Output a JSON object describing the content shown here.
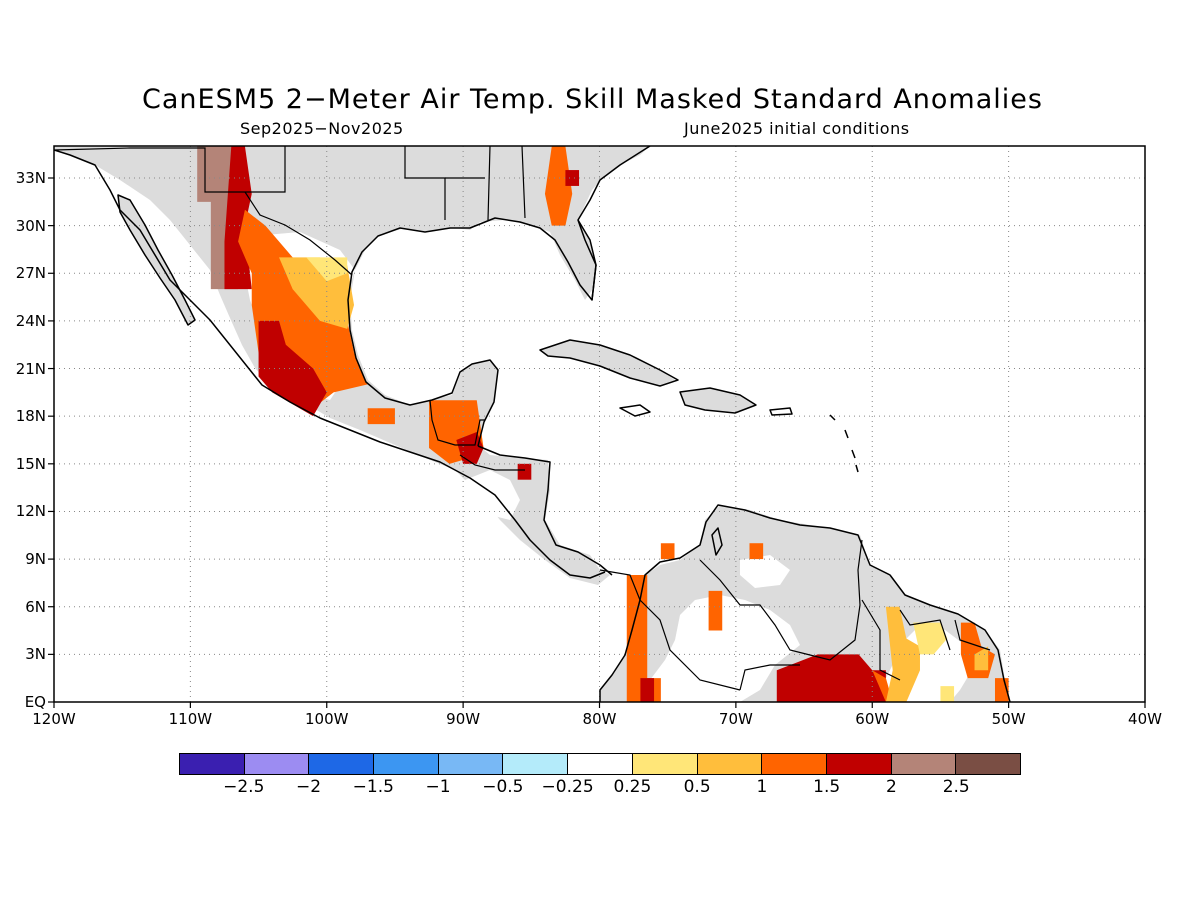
{
  "title": "CanESM5 2−Meter Air Temp. Skill Masked Standard Anomalies",
  "subtitle_left": "Sep2025−Nov2025",
  "subtitle_right": "June2025 initial conditions",
  "chart_data": {
    "type": "heatmap",
    "variable": "2-meter air temperature standard anomaly",
    "lon_range": [
      -120,
      -40
    ],
    "lat_range": [
      0,
      35
    ],
    "lat_ticks": [
      "33N",
      "30N",
      "27N",
      "24N",
      "21N",
      "18N",
      "15N",
      "12N",
      "9N",
      "6N",
      "3N",
      "EQ"
    ],
    "lon_ticks": [
      "120W",
      "110W",
      "100W",
      "90W",
      "80W",
      "70W",
      "60W",
      "50W",
      "40W"
    ],
    "grid": "dotted",
    "no_skill_color": "#dcdcdc",
    "colorbar": {
      "colors": [
        "#3a1fb0",
        "#9c8cf2",
        "#1e68e6",
        "#3c96f2",
        "#78b8f5",
        "#b4ebfa",
        "#ffffff",
        "#ffe678",
        "#ffbe3c",
        "#ff6400",
        "#c00000",
        "#b48478",
        "#7a4e44"
      ],
      "labels": [
        "−2.5",
        "−2",
        "−1.5",
        "−1",
        "−0.5",
        "−0.25",
        "0.25",
        "0.5",
        "1",
        "1.5",
        "2",
        "2.5"
      ]
    },
    "regions": [
      {
        "name": "N Mexico brown",
        "value": 2.5,
        "color": "#b48478",
        "poly": [
          [
            -109.5,
            35
          ],
          [
            -106.5,
            35
          ],
          [
            -106.5,
            26
          ],
          [
            -108.5,
            26
          ],
          [
            -108.5,
            31.5
          ],
          [
            -109.5,
            31.5
          ]
        ]
      },
      {
        "name": "N Mexico red",
        "value": 2,
        "color": "#c00000",
        "poly": [
          [
            -107,
            35
          ],
          [
            -106,
            35
          ],
          [
            -105.5,
            32
          ],
          [
            -106,
            30
          ],
          [
            -105.5,
            26
          ],
          [
            -107.5,
            26
          ],
          [
            -107.5,
            29
          ]
        ]
      },
      {
        "name": "Mexico orange",
        "value": 1.5,
        "color": "#ff6400",
        "poly": [
          [
            -106,
            31
          ],
          [
            -104.5,
            30
          ],
          [
            -102.5,
            28
          ],
          [
            -100.5,
            25
          ],
          [
            -98.5,
            24
          ],
          [
            -98,
            22
          ],
          [
            -97,
            20
          ],
          [
            -99.5,
            19.5
          ],
          [
            -101,
            18.5
          ],
          [
            -104,
            20
          ],
          [
            -105,
            22
          ],
          [
            -105.5,
            25
          ],
          [
            -105.5,
            27
          ],
          [
            -106.5,
            29
          ]
        ]
      },
      {
        "name": "Mexico orange light",
        "value": 1,
        "color": "#ffbe3c",
        "poly": [
          [
            -103.5,
            28
          ],
          [
            -100.5,
            28
          ],
          [
            -98.5,
            27.5
          ],
          [
            -98,
            25
          ],
          [
            -98.5,
            23.5
          ],
          [
            -100.5,
            24
          ],
          [
            -102.5,
            26
          ]
        ]
      },
      {
        "name": "Mexico yellow",
        "value": 0.5,
        "color": "#ffe678",
        "poly": [
          [
            -101.5,
            28
          ],
          [
            -98.5,
            28
          ],
          [
            -98.5,
            27
          ],
          [
            -100,
            26.5
          ]
        ]
      },
      {
        "name": "Mexico red",
        "value": 2,
        "color": "#c00000",
        "poly": [
          [
            -105,
            24
          ],
          [
            -103.5,
            24
          ],
          [
            -103,
            22.5
          ],
          [
            -101,
            21
          ],
          [
            -100,
            19.5
          ],
          [
            -101,
            18
          ],
          [
            -102,
            18.5
          ],
          [
            -104,
            19.5
          ],
          [
            -105,
            20.5
          ]
        ]
      },
      {
        "name": "Oaxaca orange",
        "value": 1.5,
        "color": "#ff6400",
        "poly": [
          [
            -97,
            18.5
          ],
          [
            -95,
            18.5
          ],
          [
            -95,
            17.5
          ],
          [
            -97,
            17.5
          ]
        ]
      },
      {
        "name": "Guatemala orange",
        "value": 1.5,
        "color": "#ff6400",
        "poly": [
          [
            -92.5,
            19
          ],
          [
            -89,
            19
          ],
          [
            -88.5,
            16
          ],
          [
            -89,
            15.5
          ],
          [
            -91,
            15
          ],
          [
            -92.5,
            16
          ]
        ]
      },
      {
        "name": "Guatemala red",
        "value": 2,
        "color": "#c00000",
        "poly": [
          [
            -90.5,
            16.5
          ],
          [
            -89,
            17
          ],
          [
            -88.5,
            16
          ],
          [
            -89,
            15
          ],
          [
            -90,
            15
          ]
        ]
      },
      {
        "name": "Honduras red",
        "value": 2,
        "color": "#c00000",
        "poly": [
          [
            -86,
            15
          ],
          [
            -85,
            15
          ],
          [
            -85,
            14
          ],
          [
            -86,
            14
          ]
        ]
      },
      {
        "name": "Georgia orange",
        "value": 1.5,
        "color": "#ff6400",
        "poly": [
          [
            -83.5,
            35
          ],
          [
            -82.5,
            35
          ],
          [
            -82,
            32
          ],
          [
            -82.5,
            30
          ],
          [
            -83.5,
            30
          ],
          [
            -84,
            32
          ]
        ]
      },
      {
        "name": "Georgia red",
        "value": 2,
        "color": "#c00000",
        "poly": [
          [
            -82.5,
            33.5
          ],
          [
            -81.5,
            33.5
          ],
          [
            -81.5,
            32.5
          ],
          [
            -82.5,
            32.5
          ]
        ]
      },
      {
        "name": "Colombia orange",
        "value": 1.5,
        "color": "#ff6400",
        "poly": [
          [
            -78,
            8
          ],
          [
            -76.5,
            8
          ],
          [
            -76.5,
            1.5
          ],
          [
            -75.5,
            1.5
          ],
          [
            -75.5,
            0
          ],
          [
            -78,
            0
          ]
        ]
      },
      {
        "name": "Colombia red",
        "value": 2,
        "color": "#c00000",
        "poly": [
          [
            -77,
            1.5
          ],
          [
            -76,
            1.5
          ],
          [
            -76,
            0
          ],
          [
            -77,
            0
          ]
        ]
      },
      {
        "name": "Venezuela orange",
        "value": 1.5,
        "color": "#ff6400",
        "poly": [
          [
            -75.5,
            10
          ],
          [
            -74.5,
            10
          ],
          [
            -74.5,
            9
          ],
          [
            -75.5,
            9
          ]
        ]
      },
      {
        "name": "Venezuela orange 2",
        "value": 1.5,
        "color": "#ff6400",
        "poly": [
          [
            -69,
            10
          ],
          [
            -68,
            10
          ],
          [
            -68,
            9
          ],
          [
            -69,
            9
          ]
        ]
      },
      {
        "name": "Colombia orange 2",
        "value": 1.5,
        "color": "#ff6400",
        "poly": [
          [
            -72,
            7
          ],
          [
            -71,
            7
          ],
          [
            -71,
            4.5
          ],
          [
            -72,
            4.5
          ]
        ]
      },
      {
        "name": "Amazon red",
        "value": 2,
        "color": "#c00000",
        "poly": [
          [
            -67,
            2
          ],
          [
            -64,
            3
          ],
          [
            -61,
            3
          ],
          [
            -60,
            2
          ],
          [
            -59,
            2
          ],
          [
            -59,
            0
          ],
          [
            -67,
            0
          ]
        ]
      },
      {
        "name": "Amazon orange",
        "value": 1.5,
        "color": "#ff6400",
        "poly": [
          [
            -60,
            2
          ],
          [
            -59,
            1.5
          ],
          [
            -58.5,
            0
          ],
          [
            -59,
            0
          ]
        ]
      },
      {
        "name": "Guiana light",
        "value": 1,
        "color": "#ffbe3c",
        "poly": [
          [
            -59,
            6
          ],
          [
            -58,
            6
          ],
          [
            -57.5,
            4
          ],
          [
            -56.5,
            3.5
          ],
          [
            -56.5,
            2
          ],
          [
            -57.5,
            0
          ],
          [
            -59,
            0
          ],
          [
            -58.5,
            2
          ]
        ]
      },
      {
        "name": "Guiana yellow",
        "value": 0.5,
        "color": "#ffe678",
        "poly": [
          [
            -57,
            5
          ],
          [
            -55,
            5
          ],
          [
            -54.5,
            4
          ],
          [
            -55.5,
            3
          ],
          [
            -56.5,
            3
          ]
        ]
      },
      {
        "name": "Amapa orange",
        "value": 1.5,
        "color": "#ff6400",
        "poly": [
          [
            -53.5,
            5
          ],
          [
            -52.5,
            5
          ],
          [
            -52,
            3.5
          ],
          [
            -51,
            3
          ],
          [
            -51.5,
            1.5
          ],
          [
            -53,
            1.5
          ],
          [
            -53.5,
            3
          ]
        ]
      },
      {
        "name": "Amapa light",
        "value": 1,
        "color": "#ffbe3c",
        "poly": [
          [
            -52.5,
            3
          ],
          [
            -51.5,
            3.5
          ],
          [
            -51.5,
            2
          ],
          [
            -52.5,
            2
          ]
        ]
      },
      {
        "name": "Amapa orange 2",
        "value": 1.5,
        "color": "#ff6400",
        "poly": [
          [
            -51,
            1.5
          ],
          [
            -50,
            1.5
          ],
          [
            -50,
            0
          ],
          [
            -51,
            0
          ]
        ]
      },
      {
        "name": "Brazil yellow",
        "value": 0.5,
        "color": "#ffe678",
        "poly": [
          [
            -55,
            1
          ],
          [
            -54,
            1
          ],
          [
            -54,
            0
          ],
          [
            -55,
            0
          ]
        ]
      }
    ]
  }
}
